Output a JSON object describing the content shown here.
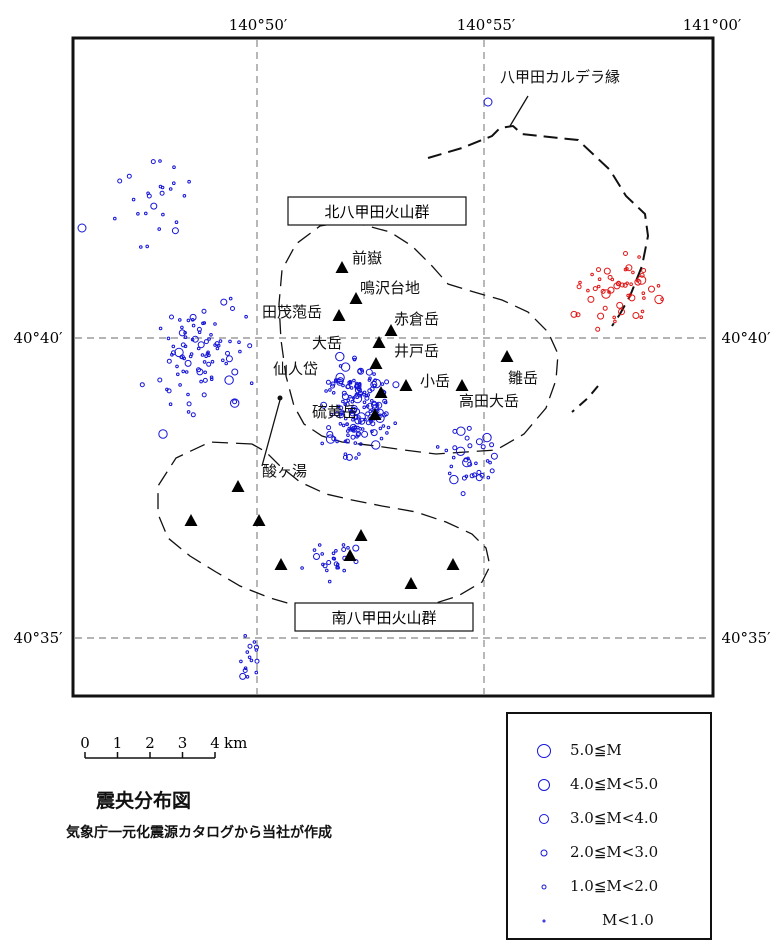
{
  "map": {
    "top_labels": [
      "140°50′",
      "140°55′",
      "141°00′"
    ],
    "left_labels": [
      "40°40′",
      "40°35′"
    ],
    "right_labels": [
      "40°40′",
      "40°35′"
    ],
    "caldera_label": "八甲田カルデラ縁",
    "north_group": "北八甲田火山群",
    "south_group": "南八甲田火山群",
    "volcano_names": [
      "前嶽",
      "鳴沢台地",
      "田茂萢岳",
      "赤倉岳",
      "大岳",
      "井戸岳",
      "仙人岱",
      "小岳",
      "雛岳",
      "高田大岳",
      "硫黄岳",
      "酸ヶ湯"
    ]
  },
  "scale": {
    "ticks": [
      "0",
      "1",
      "2",
      "3",
      "4"
    ],
    "unit": "km"
  },
  "caption": {
    "title": "震央分布図",
    "subtitle": "気象庁一元化震源カタログから当社が作成"
  },
  "legend": [
    {
      "label": "5.0≦M"
    },
    {
      "label": "4.0≦M<5.0"
    },
    {
      "label": "3.0≦M<4.0"
    },
    {
      "label": "2.0≦M<3.0"
    },
    {
      "label": "1.0≦M<2.0"
    },
    {
      "label": "M<1.0"
    }
  ],
  "colors": {
    "epicenter": "#1515d8",
    "recent_epicenter": "#e01818",
    "volcano": "#000000",
    "frame": "#111111"
  }
}
